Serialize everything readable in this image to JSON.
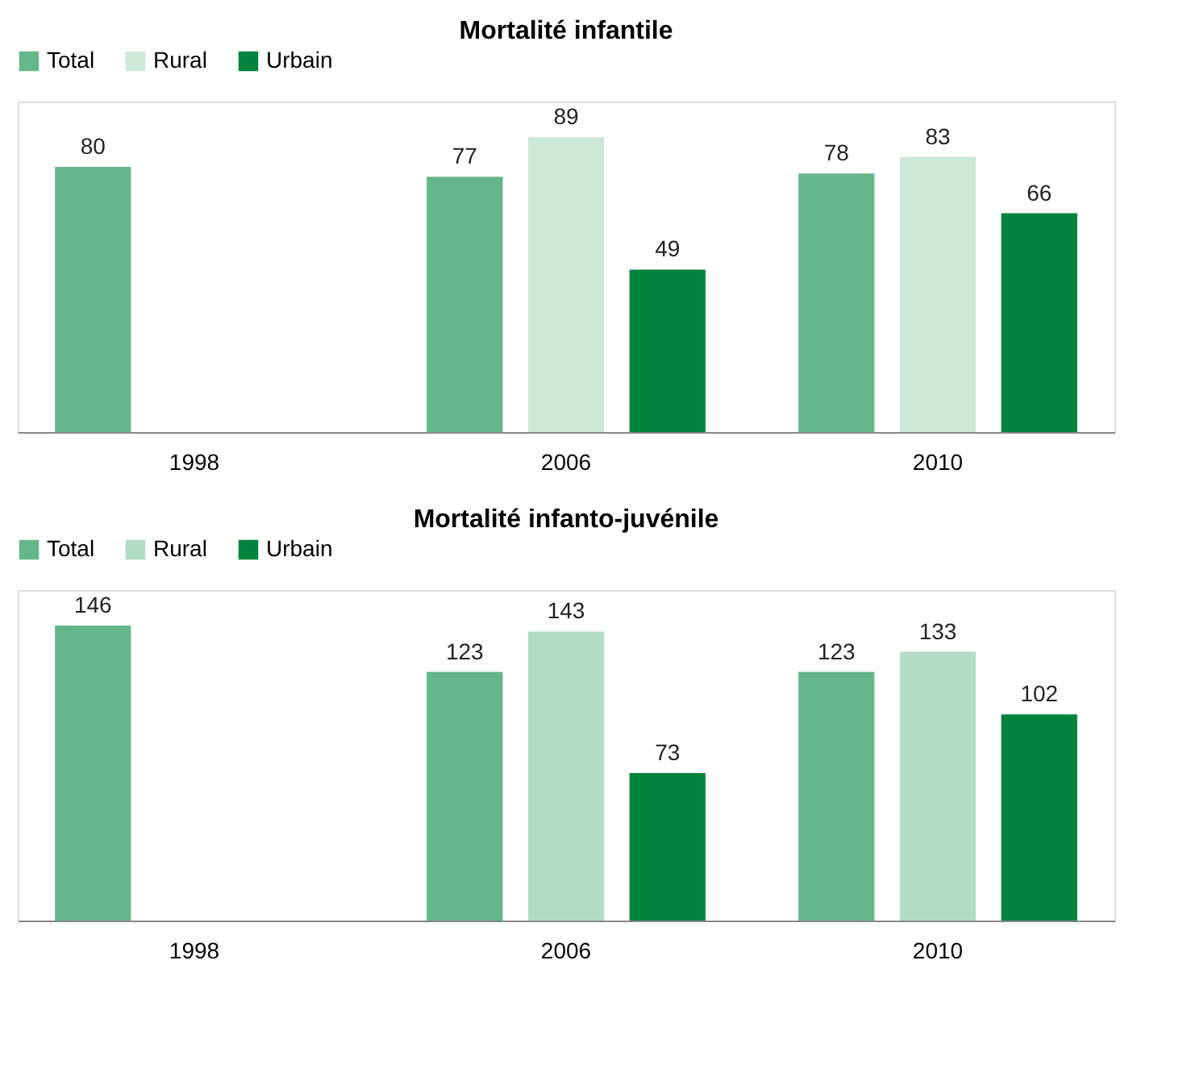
{
  "chart_data": [
    {
      "type": "bar",
      "title": "Mortalité infantile",
      "categories": [
        "1998",
        "2006",
        "2010"
      ],
      "series": [
        {
          "name": "Total",
          "color": "#66b68b",
          "values": [
            80,
            77,
            78
          ]
        },
        {
          "name": "Rural",
          "color": "#cde8d9",
          "values": [
            null,
            89,
            83
          ]
        },
        {
          "name": "Urbain",
          "color": "#00843d",
          "values": [
            null,
            49,
            66
          ]
        }
      ],
      "data_labels": true,
      "legend": "top",
      "grid": false
    },
    {
      "type": "bar",
      "title": "Mortalité infanto-juvénile",
      "categories": [
        "1998",
        "2006",
        "2010"
      ],
      "series": [
        {
          "name": "Total",
          "color": "#66b68b",
          "values": [
            146,
            123,
            123
          ]
        },
        {
          "name": "Rural",
          "color": "#b3dcc6",
          "values": [
            null,
            143,
            133
          ]
        },
        {
          "name": "Urbain",
          "color": "#00843d",
          "values": [
            null,
            73,
            102
          ]
        }
      ],
      "data_labels": true,
      "legend": "top",
      "grid": false
    }
  ]
}
